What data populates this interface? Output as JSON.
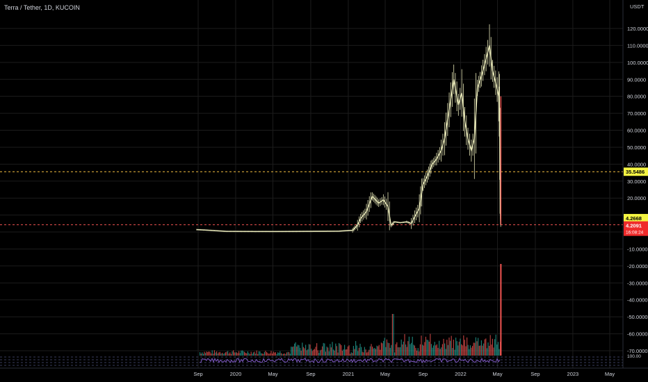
{
  "header": {
    "symbol_title": "Terra / Tether, 1D, KUCOIN",
    "currency": "USDT"
  },
  "price_tags": {
    "level_upper": "35.5486",
    "level_current_mark": "4.2668",
    "last_price": "4.2091",
    "countdown": "16:08:24"
  },
  "colors": {
    "background": "#000000",
    "grid": "#1c1c1c",
    "axis_text": "#d1d4dc",
    "candle": "#e8e8b8",
    "up": "#26a69a",
    "down": "#ef5350",
    "rsi": "#7e57c2",
    "level_upper_line": "#f5c242",
    "level_lower_line": "#ef5350",
    "tag_yellow": "#f5f542",
    "tag_red": "#ef2b2b"
  },
  "chart_data": {
    "type": "line",
    "title": "Terra / Tether, 1D, KUCOIN",
    "ylabel": "USDT",
    "ylim": [
      -72,
      122
    ],
    "y_ticks": [
      120,
      110,
      100,
      90,
      80,
      70,
      60,
      50,
      40,
      30,
      20,
      10,
      0,
      -10,
      -20,
      -30,
      -40,
      -50,
      -60,
      -70
    ],
    "y_tick_labels": [
      "120.0000",
      "110.0000",
      "100.0000",
      "90.0000",
      "80.0000",
      "70.0000",
      "60.0000",
      "50.0000",
      "40.0000",
      "30.0000",
      "20.0000",
      "",
      "",
      "-10.0000",
      "-20.0000",
      "-30.0000",
      "-40.0000",
      "-50.0000",
      "-60.0000",
      "-70.0000"
    ],
    "x_labels": [
      "Sep",
      "2020",
      "May",
      "Sep",
      "2021",
      "May",
      "Sep",
      "2022",
      "May",
      "Sep",
      "2023",
      "May"
    ],
    "x_label_dates": [
      "2019-09",
      "2020-01",
      "2020-05",
      "2020-09",
      "2021-01",
      "2021-05",
      "2021-09",
      "2022-01",
      "2022-05",
      "2022-09",
      "2023-01",
      "2023-05"
    ],
    "series": [
      {
        "x": [
          "2019-08-27",
          "2019-10-01",
          "2019-12-01",
          "2020-03-01",
          "2020-06-01",
          "2020-09-01",
          "2020-12-01",
          "2021-01-15",
          "2021-01-31",
          "2021-02-10",
          "2021-03-01",
          "2021-03-20",
          "2021-04-10",
          "2021-04-25",
          "2021-05-10",
          "2021-05-20",
          "2021-06-01",
          "2021-06-20",
          "2021-07-10",
          "2021-07-25",
          "2021-08-05",
          "2021-08-20",
          "2021-09-01",
          "2021-09-15",
          "2021-10-01",
          "2021-10-15",
          "2021-10-30",
          "2021-11-10",
          "2021-11-25",
          "2021-12-10",
          "2021-12-25",
          "2022-01-05",
          "2022-01-15",
          "2022-01-25",
          "2022-02-05",
          "2022-02-15",
          "2022-02-25",
          "2022-03-10",
          "2022-03-25",
          "2022-04-05",
          "2022-04-15",
          "2022-04-25",
          "2022-05-05",
          "2022-05-08",
          "2022-05-10",
          "2022-05-11",
          "2022-05-12"
        ],
        "values": [
          1.4,
          1.1,
          0.4,
          0.3,
          0.3,
          0.4,
          0.5,
          1.0,
          4.0,
          8.0,
          12.0,
          21.0,
          17.0,
          19.0,
          15.0,
          4.0,
          6.0,
          5.5,
          6.0,
          5.0,
          9.0,
          14.0,
          28.0,
          33.0,
          40.0,
          43.0,
          48.0,
          55.0,
          72.0,
          90.0,
          75.0,
          82.0,
          65.0,
          55.0,
          48.0,
          55.0,
          85.0,
          92.0,
          102.0,
          110.0,
          95.0,
          88.0,
          80.0,
          62.0,
          22.0,
          8.0,
          4.2091
        ]
      }
    ],
    "horizontal_levels": [
      35.5486,
      4.2668
    ]
  }
}
